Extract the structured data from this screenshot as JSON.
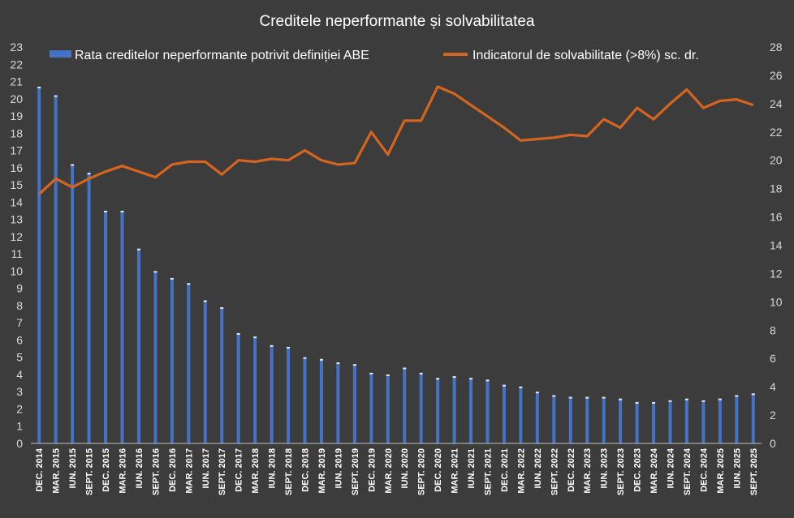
{
  "chart_data": {
    "type": "bar+line",
    "title": "Creditele neperformante și solvabilitatea",
    "categories": [
      "DEC. 2014",
      "MAR. 2015",
      "IUN. 2015",
      "SEPT. 2015",
      "DEC. 2015",
      "MAR. 2016",
      "IUN. 2016",
      "SEPT. 2016",
      "DEC. 2016",
      "MAR. 2017",
      "IUN. 2017",
      "SEPT. 2017",
      "DEC. 2017",
      "MAR. 2018",
      "IUN. 2018",
      "SEPT. 2018",
      "DEC. 2018",
      "MAR. 2019",
      "IUN. 2019",
      "SEPT. 2019",
      "DEC. 2019",
      "MAR. 2020",
      "IUN. 2020",
      "SEPT. 2020",
      "DEC. 2020",
      "MAR. 2021",
      "IUN. 2021",
      "SEPT. 2021",
      "DEC. 2021",
      "MAR. 2022",
      "IUN. 2022",
      "SEPT. 2022",
      "DEC. 2022",
      "MAR. 2023",
      "IUN. 2023",
      "SEPT. 2023",
      "DEC. 2023",
      "MAR. 2024",
      "IUN. 2024",
      "SEPT. 2024",
      "DEC. 2024",
      "MAR. 2025",
      "IUN. 2025",
      "SEPT. 2025"
    ],
    "series": [
      {
        "name": "Rata creditelor neperformante potrivit definiției ABE",
        "type": "bar",
        "axis": "left",
        "color": "#4472c4",
        "values": [
          20.7,
          20.2,
          16.2,
          15.7,
          13.5,
          13.5,
          11.3,
          10.0,
          9.6,
          9.3,
          8.3,
          7.9,
          6.4,
          6.2,
          5.7,
          5.6,
          5.0,
          4.9,
          4.7,
          4.6,
          4.1,
          4.0,
          4.4,
          4.1,
          3.8,
          3.9,
          3.8,
          3.7,
          3.4,
          3.3,
          3.0,
          2.8,
          2.7,
          2.7,
          2.7,
          2.6,
          2.4,
          2.4,
          2.5,
          2.6,
          2.5,
          2.6,
          2.8,
          2.9
        ]
      },
      {
        "name": "Indicatorul de solvabilitate (>8%) sc. dr.",
        "type": "line",
        "axis": "right",
        "color": "#d5651e",
        "values": [
          17.6,
          18.7,
          18.1,
          18.7,
          19.2,
          19.6,
          19.2,
          18.8,
          19.7,
          19.9,
          19.9,
          19.0,
          20.0,
          19.9,
          20.1,
          20.0,
          20.7,
          20.0,
          19.7,
          19.8,
          22.0,
          20.4,
          22.8,
          22.8,
          25.2,
          24.7,
          23.9,
          23.1,
          22.3,
          21.4,
          21.5,
          21.6,
          21.8,
          21.7,
          22.9,
          22.3,
          23.7,
          22.9,
          24.0,
          25.0,
          23.7,
          24.2,
          24.3,
          23.9
        ]
      }
    ],
    "y_left": {
      "min": 0,
      "max": 23,
      "step": 1
    },
    "y_right": {
      "min": 0,
      "max": 28,
      "step": 2
    },
    "legend_position": "top",
    "grid": false
  }
}
